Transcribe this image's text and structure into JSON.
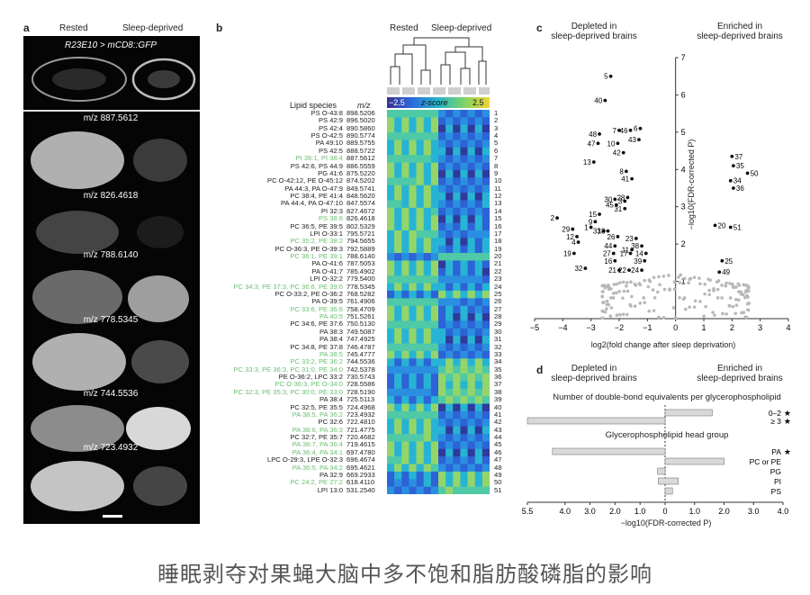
{
  "caption": "睡眠剥夺对果蝇大脑中多不饱和脂肪酸磷脂的影响",
  "panel_a": {
    "letter": "a",
    "col_rested": "Rested",
    "col_sleep": "Sleep-deprived",
    "genotype": "R23E10 > mCD8::GFP",
    "mz_labels": [
      "m/z 887.5612",
      "m/z 826.4618",
      "m/z 788.6140",
      "m/z 778.5345",
      "m/z 744.5536",
      "m/z 723.4932"
    ]
  },
  "panel_b": {
    "letter": "b",
    "col_rested": "Rested",
    "col_sleep": "Sleep-deprived",
    "hdr_species": "Lipid species",
    "hdr_mz": "m/z",
    "scale_min": "−2.5",
    "scale_label": "z-score",
    "scale_max": "2.5",
    "rows": [
      {
        "name": "PS O-43:8",
        "mz": "898.5206",
        "n": "1",
        "g": false
      },
      {
        "name": "PS 42:9",
        "mz": "896.5020",
        "n": "2",
        "g": false
      },
      {
        "name": "PS 42:4",
        "mz": "890.5860",
        "n": "3",
        "g": false
      },
      {
        "name": "PS O-42:5",
        "mz": "890.5774",
        "n": "4",
        "g": false
      },
      {
        "name": "PA 49:10",
        "mz": "889.5755",
        "n": "5",
        "g": false
      },
      {
        "name": "PS 42:5",
        "mz": "888.5722",
        "n": "6",
        "g": false
      },
      {
        "name": "PI 36:1, PI 38:4",
        "mz": "887.5612",
        "n": "7",
        "g": true
      },
      {
        "name": "PS 42:6, PS 44:9",
        "mz": "886.5559",
        "n": "8",
        "g": false
      },
      {
        "name": "PG 41:6",
        "mz": "875.5220",
        "n": "9",
        "g": false
      },
      {
        "name": "PC O-42:12, PE O-45:12",
        "mz": "874.5202",
        "n": "10",
        "g": false
      },
      {
        "name": "PA 44:3, PA O-47:9",
        "mz": "849.5741",
        "n": "11",
        "g": false
      },
      {
        "name": "PC 38:4, PE 41:4",
        "mz": "848.5620",
        "n": "12",
        "g": false
      },
      {
        "name": "PA 44:4, PA O-47:10",
        "mz": "847.5574",
        "n": "13",
        "g": false
      },
      {
        "name": "PI 32:3",
        "mz": "827.4672",
        "n": "14",
        "g": false
      },
      {
        "name": "PS 38:8",
        "mz": "826.4618",
        "n": "15",
        "g": true
      },
      {
        "name": "PC 36:5, PE 39:5",
        "mz": "802.5329",
        "n": "16",
        "g": false
      },
      {
        "name": "LPI O-33:1",
        "mz": "795.5721",
        "n": "17",
        "g": false
      },
      {
        "name": "PC 35:2, PE 38:2",
        "mz": "794.5655",
        "n": "18",
        "g": true
      },
      {
        "name": "PC O-36:3, PE O-39:3",
        "mz": "792.5889",
        "n": "19",
        "g": false
      },
      {
        "name": "PC 36:1, PE 39:1",
        "mz": "788.6140",
        "n": "20",
        "g": true
      },
      {
        "name": "PA O-41:6",
        "mz": "787.5053",
        "n": "21",
        "g": false
      },
      {
        "name": "PA O-41:7",
        "mz": "785.4902",
        "n": "22",
        "g": false
      },
      {
        "name": "LPI O-32:2",
        "mz": "779.5400",
        "n": "23",
        "g": false
      },
      {
        "name": "PC 34:3, PE 37:3, PC 36:6, PE 39:6",
        "mz": "778.5345",
        "n": "24",
        "g": true
      },
      {
        "name": "PC O-33:2, PE O-36:2",
        "mz": "768.5282",
        "n": "25",
        "g": false
      },
      {
        "name": "PA O-39:5",
        "mz": "761.4906",
        "n": "26",
        "g": false
      },
      {
        "name": "PC 33:6, PE 36:6",
        "mz": "758.4709",
        "n": "27",
        "g": true
      },
      {
        "name": "PA 40:5",
        "mz": "751.5261",
        "n": "28",
        "g": true
      },
      {
        "name": "PC 34:6, PE 37:6",
        "mz": "750.5130",
        "n": "29",
        "g": false
      },
      {
        "name": "PA 38:3",
        "mz": "749.5087",
        "n": "30",
        "g": false
      },
      {
        "name": "PA 38:4",
        "mz": "747.4925",
        "n": "31",
        "g": false
      },
      {
        "name": "PC 34:8, PE 37:8",
        "mz": "746.4787",
        "n": "32",
        "g": false
      },
      {
        "name": "PA 38:5",
        "mz": "745.4777",
        "n": "33",
        "g": true
      },
      {
        "name": "PC 33:2, PE 36:2",
        "mz": "744.5536",
        "n": "34",
        "g": true
      },
      {
        "name": "PC 33:3, PE 36:3, PC 31:0, PE 34:0",
        "mz": "742.5378",
        "n": "35",
        "g": true
      },
      {
        "name": "PE O-36:2, LPC 33:2",
        "mz": "730.5743",
        "n": "36",
        "g": false
      },
      {
        "name": "PC O-36:3, PE O-34:0",
        "mz": "728.5586",
        "n": "37",
        "g": true
      },
      {
        "name": "PC 32:3, PE 35:3, PC 30:0, PE 33:0",
        "mz": "728.5190",
        "n": "38",
        "g": true
      },
      {
        "name": "PA 38:4",
        "mz": "725.5113",
        "n": "39",
        "g": false
      },
      {
        "name": "PC 32:5, PE 35:5",
        "mz": "724.4968",
        "n": "40",
        "g": false
      },
      {
        "name": "PA 38:5, PA 36:2",
        "mz": "723.4932",
        "n": "41",
        "g": true
      },
      {
        "name": "PC 32:6",
        "mz": "722.4810",
        "n": "42",
        "g": false
      },
      {
        "name": "PA 38:6, PA 36:3",
        "mz": "721.4775",
        "n": "43",
        "g": true
      },
      {
        "name": "PC 32:7, PE 35:7",
        "mz": "720.4682",
        "n": "44",
        "g": false
      },
      {
        "name": "PA 38:7, PA 36:4",
        "mz": "719.4615",
        "n": "45",
        "g": true
      },
      {
        "name": "PA 36:4, PA 34:1",
        "mz": "697.4780",
        "n": "46",
        "g": true
      },
      {
        "name": "LPC O-29:3, LPE O-32:3",
        "mz": "696.4674",
        "n": "47",
        "g": false
      },
      {
        "name": "PA 36:5, PA 34:2",
        "mz": "695.4621",
        "n": "48",
        "g": true
      },
      {
        "name": "PA 32:9",
        "mz": "669.2933",
        "n": "49",
        "g": false
      },
      {
        "name": "PC 24:2, PE 27:2",
        "mz": "618.4110",
        "n": "50",
        "g": true
      },
      {
        "name": "LPI 13:0",
        "mz": "531.2540",
        "n": "51",
        "g": false
      }
    ]
  },
  "panel_c": {
    "letter": "c",
    "depleted": [
      "Depleted in",
      "sleep-deprived brains"
    ],
    "enriched": [
      "Enriched in",
      "sleep-deprived brains"
    ],
    "xlabel": "log2(fold change after sleep deprivation)",
    "ylabel": "−log10(FDR-corrected P)",
    "xticks": [
      "−5",
      "−4",
      "−3",
      "−2",
      "−1",
      "0",
      "1",
      "2",
      "3",
      "4"
    ],
    "yticks": [
      "1",
      "2",
      "3",
      "4",
      "5",
      "6",
      "7"
    ],
    "labeled_points": [
      {
        "n": "5",
        "x": -2.3,
        "y": 6.5
      },
      {
        "n": "40",
        "x": -2.5,
        "y": 5.85
      },
      {
        "n": "7",
        "x": -2.0,
        "y": 5.05
      },
      {
        "n": "46",
        "x": -1.6,
        "y": 5.05
      },
      {
        "n": "6",
        "x": -1.25,
        "y": 5.1
      },
      {
        "n": "48",
        "x": -2.7,
        "y": 4.95
      },
      {
        "n": "47",
        "x": -2.75,
        "y": 4.7
      },
      {
        "n": "10",
        "x": -2.05,
        "y": 4.7
      },
      {
        "n": "43",
        "x": -1.3,
        "y": 4.8
      },
      {
        "n": "42",
        "x": -1.85,
        "y": 4.45
      },
      {
        "n": "13",
        "x": -2.9,
        "y": 4.2
      },
      {
        "n": "8",
        "x": -1.75,
        "y": 3.95
      },
      {
        "n": "41",
        "x": -1.55,
        "y": 3.75
      },
      {
        "n": "37",
        "x": 2.0,
        "y": 4.35
      },
      {
        "n": "35",
        "x": 2.05,
        "y": 4.1
      },
      {
        "n": "50",
        "x": 2.55,
        "y": 3.9
      },
      {
        "n": "34",
        "x": 1.95,
        "y": 3.7
      },
      {
        "n": "36",
        "x": 2.05,
        "y": 3.5
      },
      {
        "n": "28",
        "x": -1.7,
        "y": 3.25
      },
      {
        "n": "30",
        "x": -2.15,
        "y": 3.2
      },
      {
        "n": "3",
        "x": -1.8,
        "y": 3.15
      },
      {
        "n": "45",
        "x": -2.1,
        "y": 3.05
      },
      {
        "n": "31",
        "x": -1.8,
        "y": 2.95
      },
      {
        "n": "15",
        "x": -2.7,
        "y": 2.8
      },
      {
        "n": "2",
        "x": -4.2,
        "y": 2.7
      },
      {
        "n": "9",
        "x": -2.85,
        "y": 2.6
      },
      {
        "n": "1",
        "x": -3.0,
        "y": 2.45
      },
      {
        "n": "29",
        "x": -3.65,
        "y": 2.4
      },
      {
        "n": "33",
        "x": -2.55,
        "y": 2.35
      },
      {
        "n": "18",
        "x": -2.4,
        "y": 2.35
      },
      {
        "n": "12",
        "x": -3.5,
        "y": 2.2
      },
      {
        "n": "4",
        "x": -3.45,
        "y": 2.05
      },
      {
        "n": "26",
        "x": -2.05,
        "y": 2.2
      },
      {
        "n": "23",
        "x": -1.4,
        "y": 2.15
      },
      {
        "n": "44",
        "x": -2.15,
        "y": 1.95
      },
      {
        "n": "38",
        "x": -1.2,
        "y": 1.95
      },
      {
        "n": "11",
        "x": -1.55,
        "y": 1.85
      },
      {
        "n": "27",
        "x": -2.2,
        "y": 1.75
      },
      {
        "n": "17",
        "x": -1.6,
        "y": 1.75
      },
      {
        "n": "14",
        "x": -1.05,
        "y": 1.75
      },
      {
        "n": "19",
        "x": -3.6,
        "y": 1.75
      },
      {
        "n": "16",
        "x": -2.15,
        "y": 1.55
      },
      {
        "n": "39",
        "x": -1.1,
        "y": 1.55
      },
      {
        "n": "32",
        "x": -3.2,
        "y": 1.35
      },
      {
        "n": "21",
        "x": -2.0,
        "y": 1.3
      },
      {
        "n": "22",
        "x": -1.65,
        "y": 1.3
      },
      {
        "n": "24",
        "x": -1.2,
        "y": 1.3
      },
      {
        "n": "20",
        "x": 1.4,
        "y": 2.5
      },
      {
        "n": "51",
        "x": 1.95,
        "y": 2.45
      },
      {
        "n": "25",
        "x": 1.65,
        "y": 1.55
      },
      {
        "n": "49",
        "x": 1.55,
        "y": 1.25
      }
    ]
  },
  "panel_d": {
    "letter": "d",
    "depleted": [
      "Depleted in",
      "sleep-deprived brains"
    ],
    "enriched": [
      "Enriched in",
      "sleep-deprived brains"
    ],
    "section1": "Number of double-bond equivalents per glycerophospholipid",
    "section2": "Glycerophospholipid head group",
    "bars1": [
      {
        "label": "0–2",
        "value": 1.6,
        "dir": "enriched",
        "star": true
      },
      {
        "label": "≥ 3",
        "value": 5.5,
        "dir": "depleted",
        "star": true
      }
    ],
    "bars2": [
      {
        "label": "PA",
        "value": 4.5,
        "dir": "depleted",
        "star": true
      },
      {
        "label": "PC or PE",
        "value": 2.0,
        "dir": "enriched",
        "star": false
      },
      {
        "label": "PG",
        "value": 0.3,
        "dir": "depleted",
        "star": false
      },
      {
        "label": "PI",
        "value": 0.45,
        "dir": "mixed",
        "star": false
      },
      {
        "label": "PS",
        "value": 0.25,
        "dir": "enriched",
        "star": false
      }
    ],
    "xticks": [
      "5.5",
      "4.0",
      "3.0",
      "2.0",
      "1.0",
      "0",
      "1.0",
      "2.0",
      "3.0",
      "4.0"
    ],
    "xlabel": "−log10(FDR-corrected P)"
  }
}
